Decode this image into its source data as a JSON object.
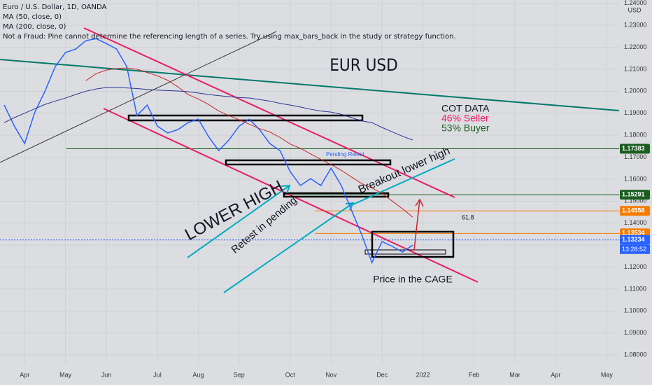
{
  "chart_data": {
    "type": "line",
    "header": [
      "Euro / U.S. Dollar, 1D, OANDA",
      "MA (50, close, 0)",
      "MA (200, close, 0)",
      "Not a Fraud: Pine cannot determine the referencing length of a series. Try using max_bars_back in the study or strategy function."
    ],
    "currency": "USD",
    "title": "EUR USD",
    "annotations": {
      "cot": "COT DATA",
      "seller": "46% Seller",
      "buyer": "53% Buyer",
      "pending": "Pending Retest",
      "breakout": "Breakout lower high",
      "lower_high": "LOWER HIGH",
      "retest": "Retest in pending",
      "cage": "Price in the CAGE",
      "fib": "61.8",
      "countdown": "13:28:52"
    },
    "categories": [
      null,
      null,
      "Apr",
      null,
      null,
      null,
      "May",
      null,
      null,
      null,
      "Jun",
      null,
      null,
      null,
      null,
      "Jul",
      null,
      null,
      null,
      "Aug",
      null,
      null,
      null,
      "Sep",
      null,
      null,
      null,
      null,
      "Oct",
      null,
      null,
      null,
      "Nov",
      null,
      null,
      null,
      null,
      "Dec",
      null,
      null,
      null,
      "2022",
      null,
      null,
      null,
      null,
      "Feb",
      null,
      null,
      null,
      "Mar",
      null,
      null,
      null,
      "Apr",
      null,
      null,
      null,
      null,
      "May"
    ],
    "series": [
      {
        "name": "EUR/USD",
        "color": "#2962ff",
        "values": [
          1.1937,
          1.1841,
          1.1762,
          1.1905,
          1.2001,
          1.2112,
          1.2176,
          1.2192,
          1.223,
          1.2239,
          1.2217,
          1.2192,
          1.2112,
          1.1889,
          1.1937,
          1.1841,
          1.181,
          1.1825,
          1.1857,
          1.1873,
          1.1794,
          1.173,
          1.1778,
          1.1841,
          1.1873,
          1.1825,
          1.1762,
          1.173,
          1.1634,
          1.1571,
          1.1602,
          1.1571,
          1.165,
          1.1571,
          1.1459,
          1.1348,
          1.122,
          1.1316,
          1.1294,
          1.1268,
          1.13,
          null,
          null,
          null,
          null,
          null,
          null,
          null,
          null,
          null,
          null,
          null,
          null,
          null,
          null,
          null,
          null,
          null,
          null,
          null
        ]
      },
      {
        "name": "MA (50, close, 0)",
        "color": "#c62828",
        "values": [
          null,
          null,
          null,
          null,
          null,
          null,
          null,
          null,
          1.2048,
          1.208,
          1.2096,
          1.2103,
          1.2106,
          1.21,
          1.2085,
          1.207,
          1.205,
          1.202,
          1.1985,
          1.1965,
          1.194,
          1.191,
          1.1889,
          1.187,
          1.185,
          1.183,
          1.1815,
          1.179,
          1.176,
          1.174,
          1.1715,
          1.169,
          1.1666,
          1.164,
          1.161,
          1.158,
          1.156,
          1.1535,
          1.15,
          1.1465,
          1.1427,
          null,
          null,
          null,
          null,
          null,
          null,
          null,
          null,
          null,
          null,
          null,
          null,
          null,
          null,
          null,
          null,
          null,
          null,
          null
        ]
      },
      {
        "name": "MA (200, close, 0)",
        "color": "#283593",
        "values": [
          1.1857,
          1.188,
          1.19,
          1.192,
          1.194,
          1.1955,
          1.1969,
          1.1985,
          1.2,
          1.201,
          1.2017,
          1.2017,
          1.2015,
          1.2012,
          1.2008,
          1.2005,
          1.2003,
          1.2001,
          1.1998,
          1.1992,
          1.1985,
          1.198,
          1.1975,
          1.1971,
          1.1969,
          1.1962,
          1.1955,
          1.1945,
          1.1937,
          1.1928,
          1.1918,
          1.191,
          1.1905,
          1.1895,
          1.188,
          1.1865,
          1.1857,
          1.1835,
          1.1815,
          1.1795,
          1.1778,
          null,
          null,
          null,
          null,
          null,
          null,
          null,
          null,
          null,
          null,
          null,
          null,
          null,
          null,
          null,
          null,
          null,
          null,
          null
        ]
      }
    ],
    "levels": [
      {
        "value": 1.17383,
        "label": "1.17383",
        "color": "#1b5e20"
      },
      {
        "value": 1.15291,
        "label": "1.15291",
        "color": "#1b5e20"
      },
      {
        "value": 1.14558,
        "label": "1.14558",
        "color": "#f57c00"
      },
      {
        "value": 1.13534,
        "label": "1.13534",
        "color": "#f57c00"
      },
      {
        "value": 1.13234,
        "label": "1.13234",
        "color": "#2962ff"
      }
    ],
    "ylim": [
      1.0759,
      1.2415
    ],
    "yticks": [
      {
        "value": 1.08,
        "label": "1.08000"
      },
      {
        "value": 1.09,
        "label": "1.09000"
      },
      {
        "value": 1.1,
        "label": "1.10000"
      },
      {
        "value": 1.11,
        "label": "1.11000"
      },
      {
        "value": 1.12,
        "label": "1.12000"
      },
      {
        "value": 1.13,
        "label": "1.13000"
      },
      {
        "value": 1.14,
        "label": "1.14000"
      },
      {
        "value": 1.15,
        "label": "1.15000"
      },
      {
        "value": 1.16,
        "label": "1.16000"
      },
      {
        "value": 1.17,
        "label": "1.17000"
      },
      {
        "value": 1.18,
        "label": "1.18000"
      },
      {
        "value": 1.19,
        "label": "1.19000"
      },
      {
        "value": 1.2,
        "label": "1.20000"
      },
      {
        "value": 1.21,
        "label": "1.21000"
      },
      {
        "value": 1.22,
        "label": "1.22000"
      },
      {
        "value": 1.23,
        "label": "1.23000"
      },
      {
        "value": 1.24,
        "label": "1.24000"
      }
    ],
    "grid": true
  }
}
